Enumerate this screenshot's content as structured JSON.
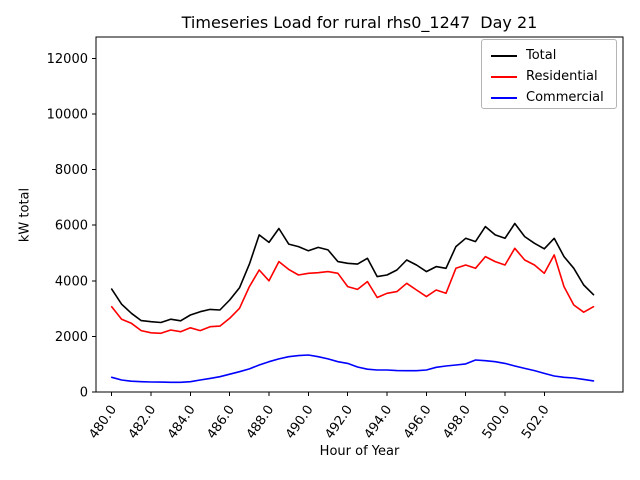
{
  "chart_data": {
    "type": "line",
    "title": "Timeseries Load for rural rhs0_1247  Day 21",
    "xlabel": "Hour of Year",
    "ylabel": "kW total",
    "xlim": [
      479.2,
      506.0
    ],
    "ylim": [
      0,
      12770
    ],
    "xticks": [
      480,
      482,
      484,
      486,
      488,
      490,
      492,
      494,
      496,
      498,
      500,
      502
    ],
    "xtick_labels": [
      "480.0",
      "482.0",
      "484.0",
      "486.0",
      "488.0",
      "490.0",
      "492.0",
      "494.0",
      "496.0",
      "498.0",
      "500.0",
      "502.0"
    ],
    "yticks": [
      0,
      2000,
      4000,
      6000,
      8000,
      10000,
      12000
    ],
    "grid": false,
    "legend_position": "upper right",
    "x": [
      480.0,
      480.5,
      481.0,
      481.5,
      482.0,
      482.5,
      483.0,
      483.5,
      484.0,
      484.5,
      485.0,
      485.5,
      486.0,
      486.5,
      487.0,
      487.5,
      488.0,
      488.5,
      489.0,
      489.5,
      490.0,
      490.5,
      491.0,
      491.5,
      492.0,
      492.5,
      493.0,
      493.5,
      494.0,
      494.5,
      495.0,
      495.5,
      496.0,
      496.5,
      497.0,
      497.5,
      498.0,
      498.5,
      499.0,
      499.5,
      500.0,
      500.5,
      501.0,
      501.5,
      502.0,
      502.5,
      503.0,
      503.5,
      504.0,
      504.5
    ],
    "series": [
      {
        "name": "Total",
        "color": "#000000",
        "values": [
          3700,
          3160,
          2830,
          2570,
          2530,
          2500,
          2620,
          2560,
          2770,
          2890,
          2970,
          2950,
          3310,
          3750,
          4600,
          5650,
          5380,
          5880,
          5320,
          5230,
          5080,
          5200,
          5110,
          4690,
          4630,
          4600,
          4810,
          4150,
          4210,
          4390,
          4750,
          4570,
          4330,
          4510,
          4450,
          5230,
          5530,
          5410,
          5950,
          5650,
          5530,
          6060,
          5590,
          5350,
          5150,
          5530,
          4870,
          4450,
          3850,
          3500
        ]
      },
      {
        "name": "Residential",
        "color": "#ff0000",
        "values": [
          3070,
          2620,
          2470,
          2210,
          2130,
          2110,
          2230,
          2170,
          2310,
          2210,
          2350,
          2370,
          2650,
          3010,
          3790,
          4390,
          4000,
          4690,
          4410,
          4210,
          4270,
          4290,
          4330,
          4270,
          3790,
          3690,
          3970,
          3400,
          3550,
          3610,
          3910,
          3670,
          3430,
          3670,
          3550,
          4450,
          4570,
          4450,
          4870,
          4690,
          4570,
          5170,
          4750,
          4570,
          4270,
          4930,
          3790,
          3130,
          2870,
          3070
        ]
      },
      {
        "name": "Commercial",
        "color": "#0000ff",
        "values": [
          530,
          430,
          390,
          370,
          360,
          355,
          350,
          350,
          370,
          430,
          490,
          550,
          640,
          730,
          830,
          970,
          1090,
          1190,
          1270,
          1310,
          1330,
          1270,
          1190,
          1090,
          1030,
          900,
          820,
          790,
          790,
          770,
          765,
          765,
          790,
          890,
          935,
          970,
          1010,
          1150,
          1125,
          1090,
          1030,
          935,
          850,
          770,
          670,
          575,
          530,
          505,
          455,
          400
        ]
      }
    ]
  }
}
